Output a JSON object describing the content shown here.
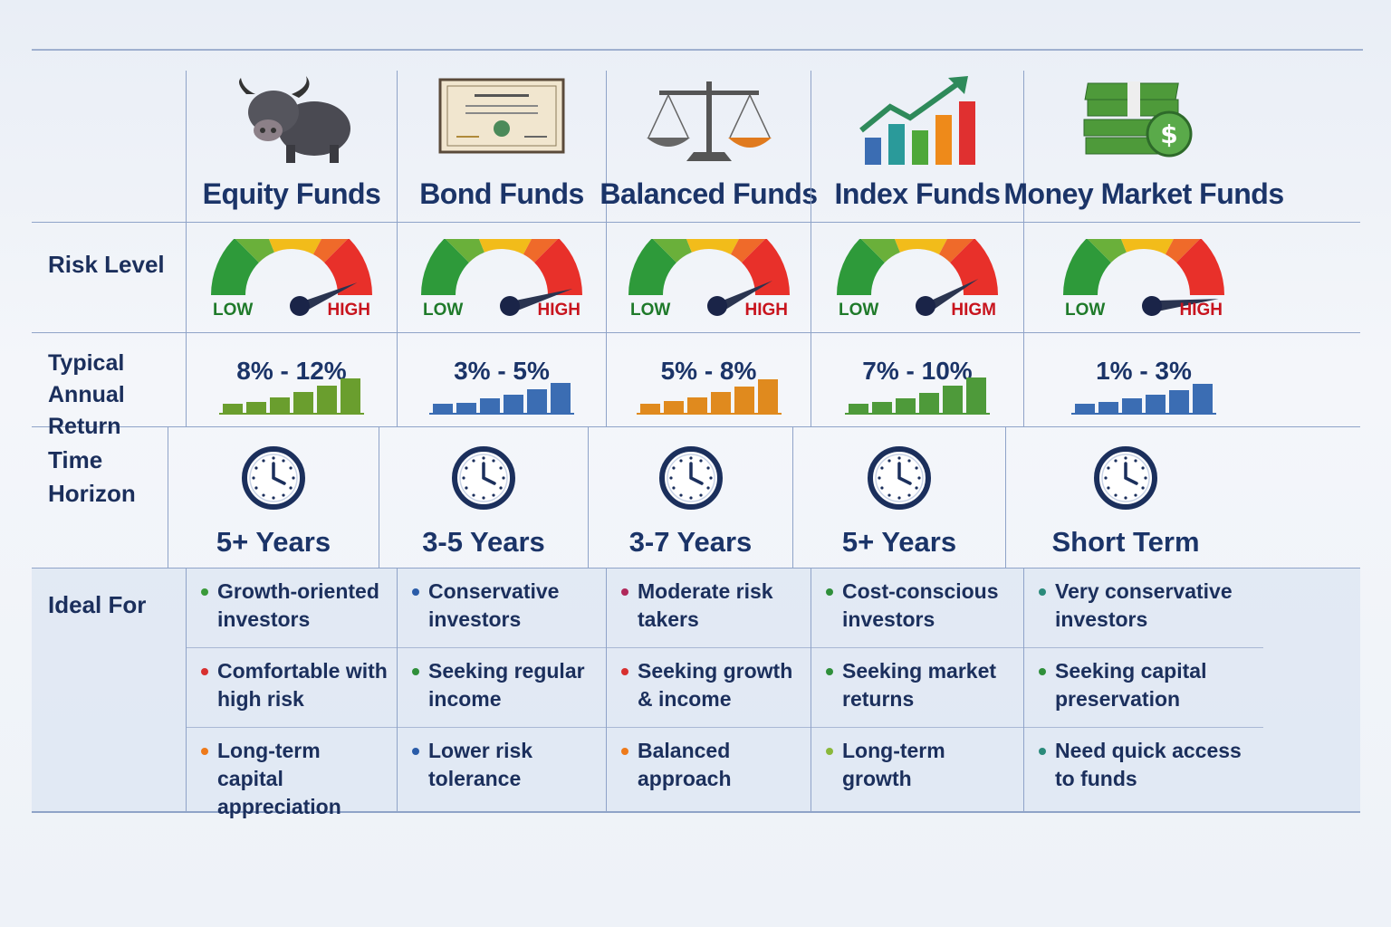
{
  "row_labels": {
    "risk": "Risk Level",
    "return": "Typical Annual Return",
    "time": "Time Horizon",
    "ideal": "Ideal For"
  },
  "gauge_labels": {
    "low": "LOW",
    "high": "HIGH"
  },
  "funds": [
    {
      "name": "Equity Funds",
      "icon": "bull-icon",
      "risk": 0.82,
      "high_label": "HIGH",
      "return": "8% - 12%",
      "bar_color": "#6a9e2e",
      "bars": [
        1,
        1.2,
        1.7,
        2.3,
        3,
        3.8
      ],
      "horizon": "5+ Years",
      "ideal": [
        {
          "text": "Growth-oriented investors",
          "color": "#3a9a3a"
        },
        {
          "text": "Comfortable with high risk",
          "color": "#d83030"
        },
        {
          "text": "Long-term capital appreciation",
          "color": "#ee7a1a"
        }
      ]
    },
    {
      "name": "Bond Funds",
      "icon": "certificate-icon",
      "risk": 0.88,
      "high_label": "HIGH",
      "return": "3% - 5%",
      "bar_color": "#3b6db3",
      "bars": [
        1,
        1.1,
        1.6,
        2,
        2.6,
        3.3
      ],
      "horizon": "3-5 Years",
      "ideal": [
        {
          "text": "Conservative investors",
          "color": "#2a5ca8"
        },
        {
          "text": "Seeking regular income",
          "color": "#2f8f3a"
        },
        {
          "text": "Lower risk tolerance",
          "color": "#2a5ca8"
        }
      ]
    },
    {
      "name": "Balanced Funds",
      "icon": "scale-icon",
      "risk": 0.8,
      "high_label": "HIGH",
      "return": "5% - 8%",
      "bar_color": "#e08a1e",
      "bars": [
        1,
        1.3,
        1.7,
        2.3,
        2.9,
        3.7
      ],
      "horizon": "3-7 Years",
      "ideal": [
        {
          "text": "Moderate risk takers",
          "color": "#b0285a"
        },
        {
          "text": "Seeking growth & income",
          "color": "#d83030"
        },
        {
          "text": "Balanced approach",
          "color": "#ee7a1a"
        }
      ]
    },
    {
      "name": "Index Funds",
      "icon": "growth-chart-icon",
      "risk": 0.78,
      "high_label": "HIGM",
      "return": "7% - 10%",
      "bar_color": "#4e9a3a",
      "bars": [
        1,
        1.2,
        1.6,
        2.2,
        3,
        3.9
      ],
      "horizon": "5+ Years",
      "ideal": [
        {
          "text": "Cost-conscious investors",
          "color": "#2f8f3a"
        },
        {
          "text": "Seeking market returns",
          "color": "#2f8f3a"
        },
        {
          "text": "Long-term growth",
          "color": "#8ab83a"
        }
      ]
    },
    {
      "name": "Money Market Funds",
      "icon": "cash-stack-icon",
      "risk": 0.97,
      "high_label": "HIGH",
      "return": "1% - 3%",
      "bar_color": "#3b6db3",
      "bars": [
        1,
        1.2,
        1.6,
        2,
        2.5,
        3.2
      ],
      "horizon": "Short Term",
      "ideal": [
        {
          "text": "Very conservative investors",
          "color": "#2a8a7a"
        },
        {
          "text": "Seeking capital preservation",
          "color": "#2f8f3a"
        },
        {
          "text": "Need quick access to funds",
          "color": "#2a8a7a"
        }
      ]
    }
  ]
}
